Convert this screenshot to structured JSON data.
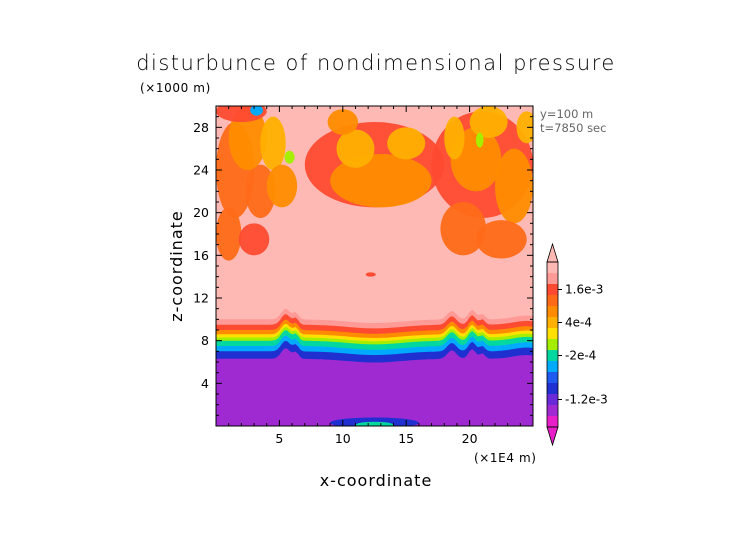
{
  "chart_data": {
    "type": "heatmap",
    "title": "disturbunce of nondimensional pressure",
    "y_unit": "(×1000 m)",
    "x_unit": "(×1E4 m)",
    "xlabel": "x-coordinate",
    "ylabel": "z-coordinate",
    "xlim": [
      0,
      25
    ],
    "ylim": [
      0,
      30
    ],
    "x_ticks": [
      5,
      10,
      15,
      20
    ],
    "y_ticks": [
      4,
      8,
      12,
      16,
      20,
      24,
      28
    ],
    "info": [
      "y=100 m",
      "t=7850 sec"
    ],
    "colorbar": {
      "labels": [
        "1.6e-3",
        "4e-4",
        "-2e-4",
        "-1.2e-3"
      ],
      "levels": [
        0.0022,
        0.0018,
        0.0016,
        0.0012,
        0.0008,
        0.0004,
        0.0002,
        0,
        -0.0002,
        -0.0004,
        -0.0006,
        -0.0008,
        -0.0012,
        -0.0016,
        -0.002
      ],
      "colors": [
        "#ffb9b4",
        "#ff9a96",
        "#ff4a32",
        "#ff6a18",
        "#ff8c00",
        "#ffb000",
        "#ffe000",
        "#a6ee00",
        "#00d8a0",
        "#00aaff",
        "#1e5af0",
        "#2030d0",
        "#6a2ad8",
        "#a02ad2",
        "#e81ec8"
      ]
    },
    "layers": [
      {
        "z_top": 6.3,
        "level": -0.0016
      },
      {
        "z_top": 7.0,
        "level": -0.0008
      },
      {
        "z_top": 7.5,
        "level": -0.0004
      },
      {
        "z_top": 8.0,
        "level": -0.0002
      },
      {
        "z_top": 8.3,
        "level": 0
      },
      {
        "z_top": 8.6,
        "level": 0.0002
      },
      {
        "z_top": 9.0,
        "level": 0.0008
      },
      {
        "z_top": 9.5,
        "level": 0.0016
      },
      {
        "z_top": 10.0,
        "level": 0.0018
      },
      {
        "z_top": 15.5,
        "level": 0.0022
      }
    ]
  }
}
